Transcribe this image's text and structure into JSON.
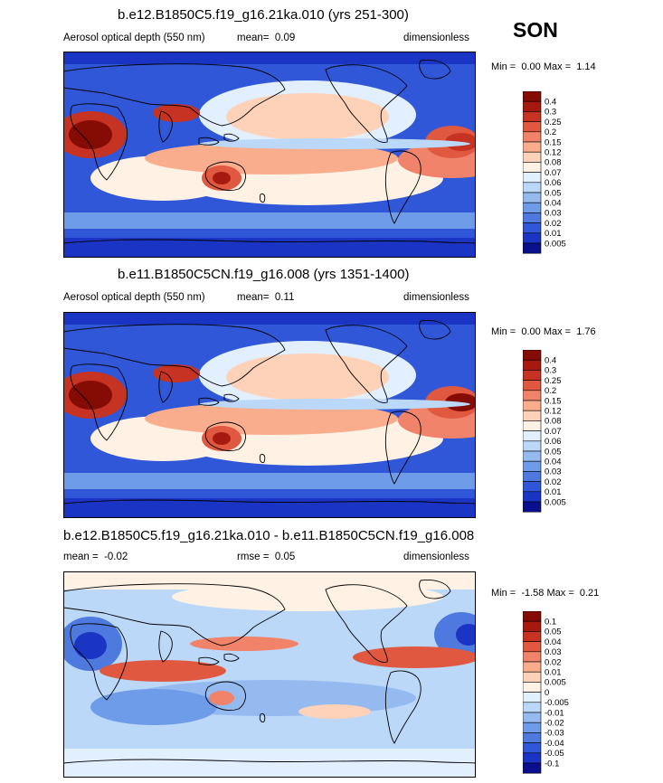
{
  "season": "SON",
  "colors": {
    "ramp_pos": [
      "#d6f0ff",
      "#b4d9f8",
      "#8dbbf1",
      "#6b9bea",
      "#4a78e2",
      "#2d56d8",
      "#1637c6",
      "#04108a"
    ],
    "ramp_aod": [
      "#0a108c",
      "#1a35c4",
      "#2f57d8",
      "#4e7ae0",
      "#6f9ce8",
      "#94baf0",
      "#bcd8f8",
      "#e2efff",
      "#fff2e4",
      "#fdd2b8",
      "#f9ad8d",
      "#f0836a",
      "#e0583f",
      "#c63322",
      "#a6190e",
      "#850b05"
    ],
    "ramp_diff": [
      "#0a108c",
      "#1a35c4",
      "#2f57d8",
      "#4e7ae0",
      "#6f9ce8",
      "#94baf0",
      "#bcd8f8",
      "#e2efff",
      "#fff2e4",
      "#fdd2b8",
      "#f9ad8d",
      "#f0836a",
      "#e0583f",
      "#c63322",
      "#a6190e",
      "#850b05"
    ]
  },
  "chart_data": [
    {
      "type": "heatmap",
      "title": "b.e12.B1850C5.f19_g16.21ka.010 (yrs 251-300)",
      "left_label": "Aerosol optical depth (550 nm)",
      "mean_label": "mean=",
      "mean_value": "0.09",
      "units": "dimensionless",
      "min_label": "Min =",
      "min_value": "0.00",
      "max_label": "Max =",
      "max_value": "1.14",
      "colorbar_levels": [
        "0.4",
        "0.3",
        "0.25",
        "0.2",
        "0.15",
        "0.12",
        "0.08",
        "0.07",
        "0.06",
        "0.05",
        "0.04",
        "0.03",
        "0.02",
        "0.01",
        "0.005"
      ]
    },
    {
      "type": "heatmap",
      "title": "b.e11.B1850C5CN.f19_g16.008 (yrs 1351-1400)",
      "left_label": "Aerosol optical depth (550 nm)",
      "mean_label": "mean=",
      "mean_value": "0.11",
      "units": "dimensionless",
      "min_label": "Min =",
      "min_value": "0.00",
      "max_label": "Max =",
      "max_value": "1.76",
      "colorbar_levels": [
        "0.4",
        "0.3",
        "0.25",
        "0.2",
        "0.15",
        "0.12",
        "0.08",
        "0.07",
        "0.06",
        "0.05",
        "0.04",
        "0.03",
        "0.02",
        "0.01",
        "0.005"
      ]
    },
    {
      "type": "heatmap",
      "title": "b.e12.B1850C5.f19_g16.21ka.010 - b.e11.B1850C5CN.f19_g16.008",
      "mean_label": "mean =",
      "mean_value": "-0.02",
      "rmse_label": "rmse =",
      "rmse_value": "0.05",
      "units": "dimensionless",
      "min_label": "Min =",
      "min_value": "-1.58",
      "max_label": "Max =",
      "max_value": "0.21",
      "colorbar_levels": [
        "0.1",
        "0.05",
        "0.04",
        "0.03",
        "0.02",
        "0.01",
        "0.005",
        "0",
        "-0.005",
        "-0.01",
        "-0.02",
        "-0.03",
        "-0.04",
        "-0.05",
        "-0.1"
      ]
    }
  ]
}
